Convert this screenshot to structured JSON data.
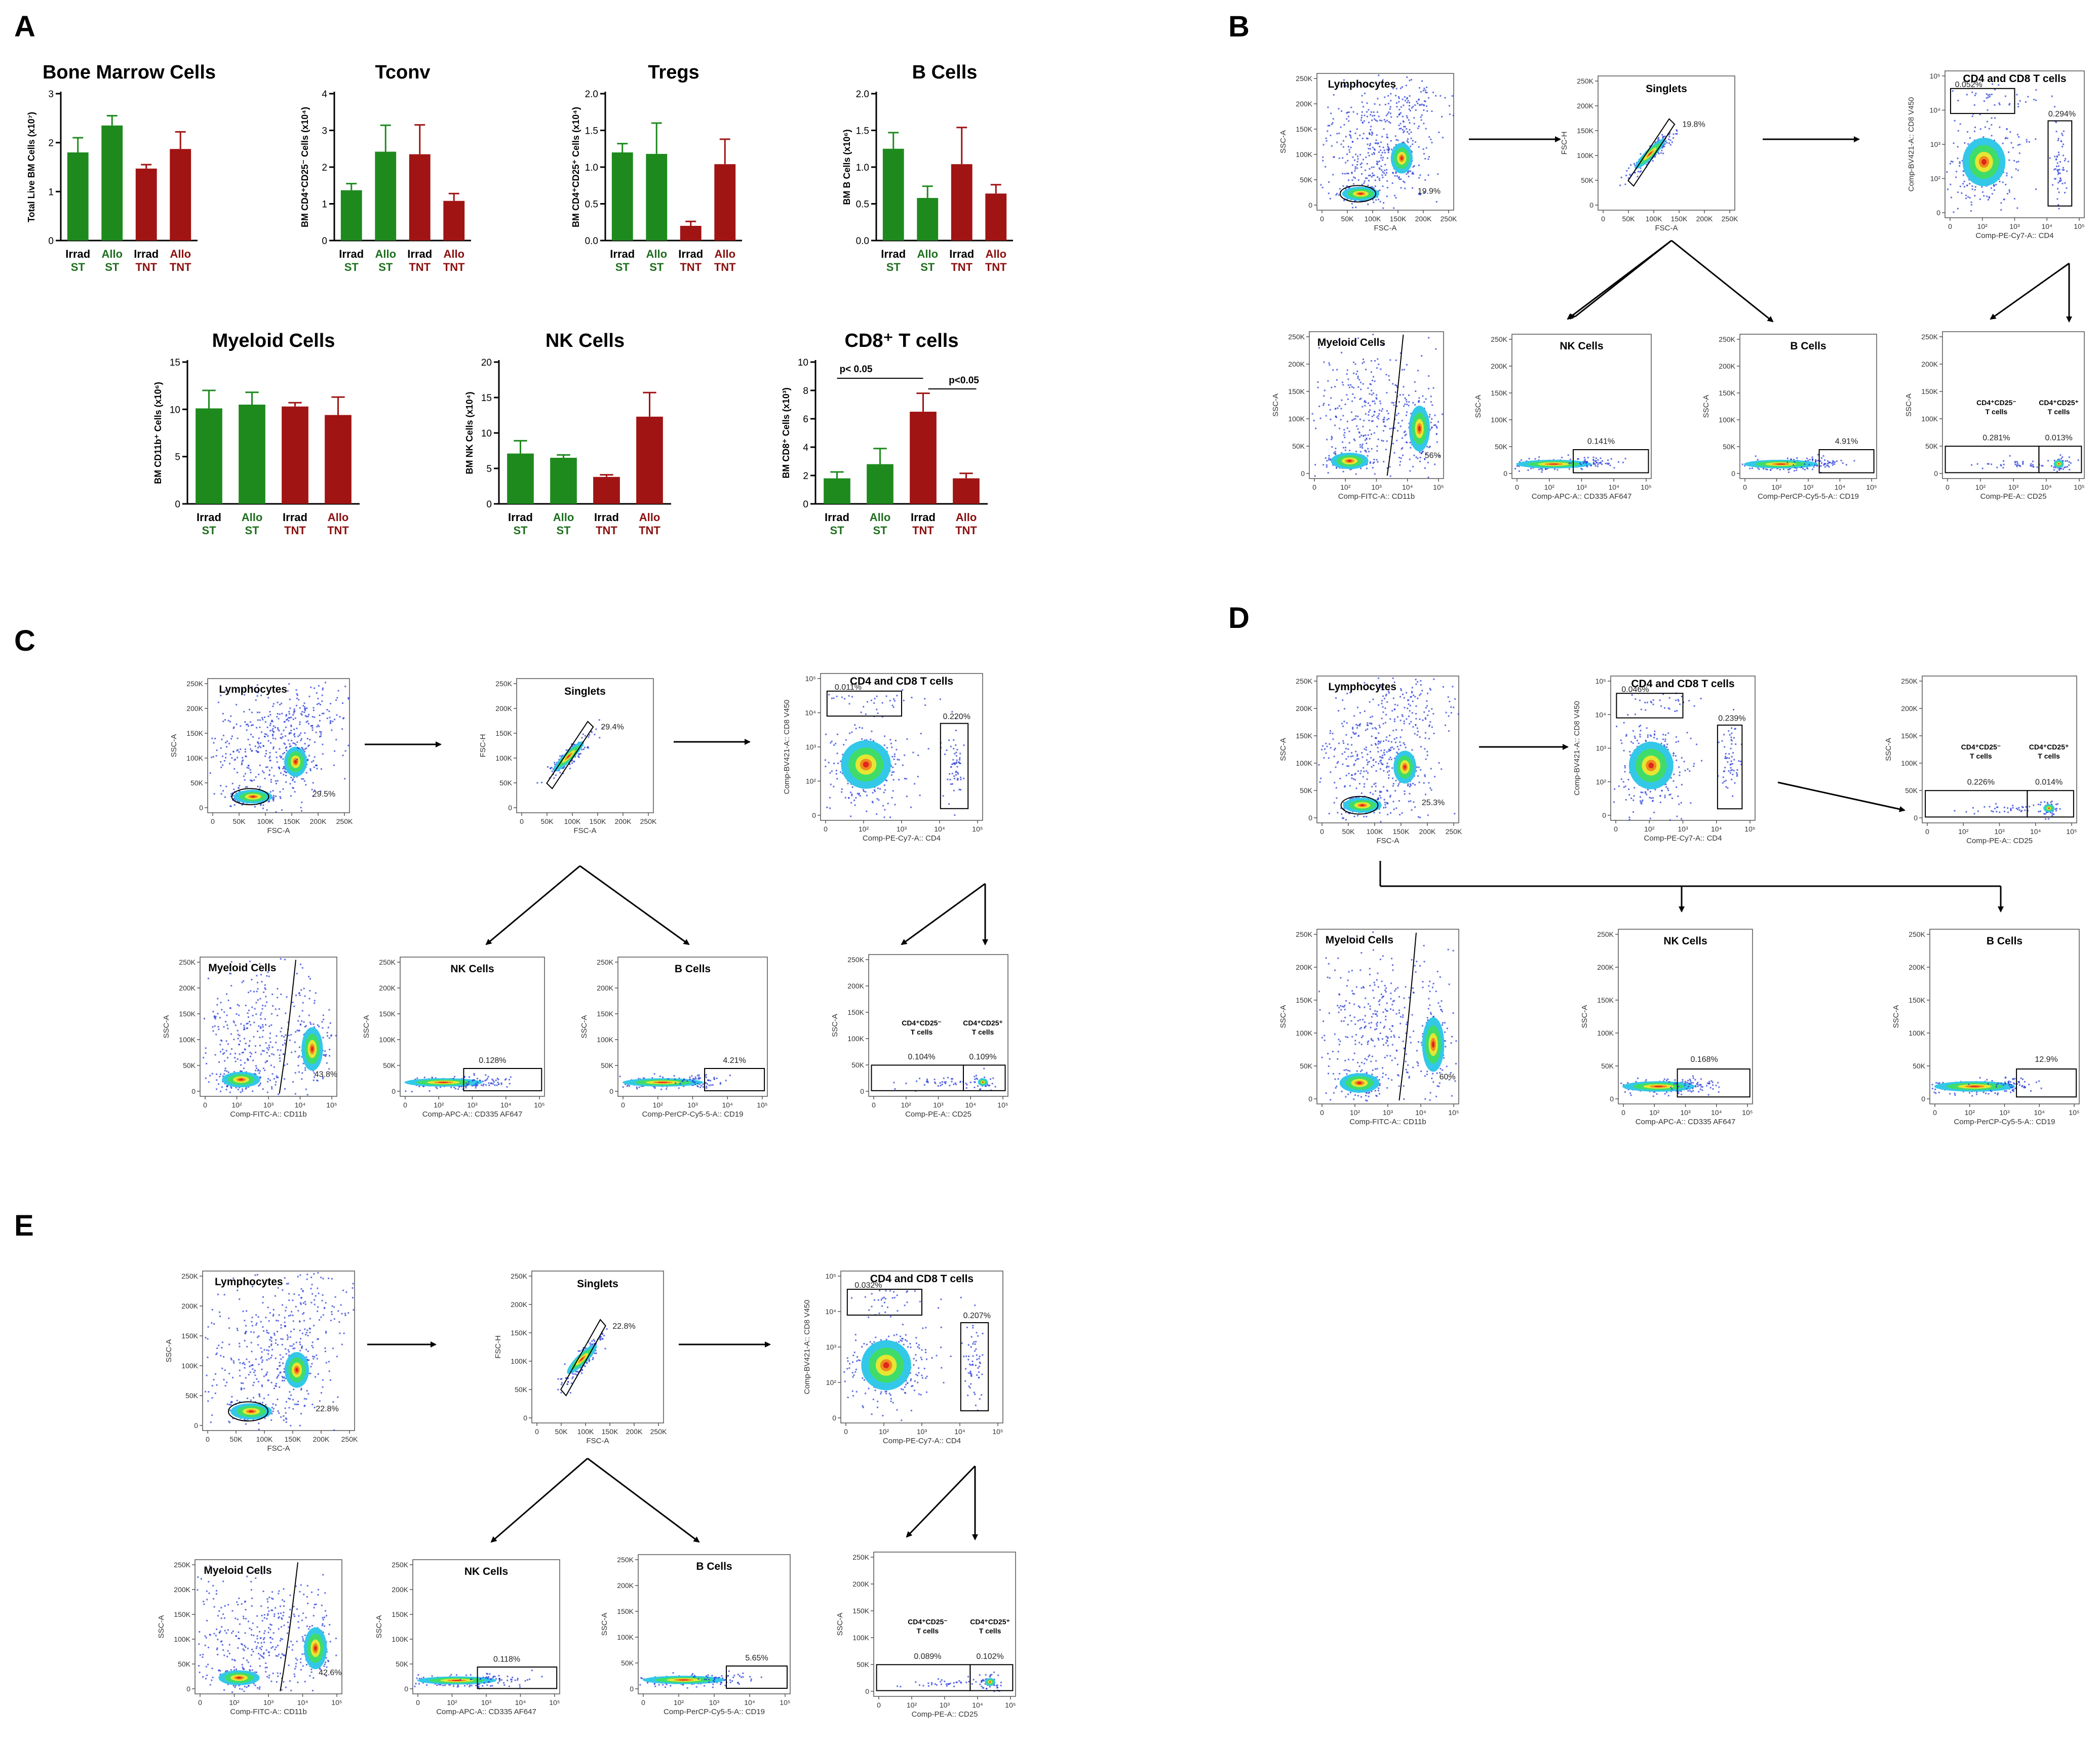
{
  "panel_labels": [
    "A",
    "B",
    "C",
    "D",
    "E"
  ],
  "colors": {
    "st": "#1e8a1e",
    "tnt": "#a01414",
    "st_text": "#1e6e1e",
    "tnt_text": "#8b0f0f",
    "axis": "#000000"
  },
  "significance": {
    "p1": "p< 0.05",
    "p2": "p<0.05"
  },
  "chart_data": [
    {
      "type": "bar",
      "title": "Bone Marrow Cells",
      "ylabel": "Total Live BM Cells (x10⁷)",
      "ylim": [
        0,
        3
      ],
      "yticks": [
        "0",
        "1",
        "2",
        "3"
      ],
      "categories": [
        "Irrad ST",
        "Allo ST",
        "Irrad TNT",
        "Allo TNT"
      ],
      "values": [
        1.8,
        2.35,
        1.47,
        1.87
      ],
      "errors": [
        0.3,
        0.2,
        0.08,
        0.35
      ]
    },
    {
      "type": "bar",
      "title": "Tconv",
      "ylabel": "BM CD4⁺CD25⁻ Cells (x10⁴)",
      "ylim": [
        0,
        4
      ],
      "yticks": [
        "0",
        "1",
        "2",
        "3",
        "4"
      ],
      "categories": [
        "Irrad ST",
        "Allo ST",
        "Irrad TNT",
        "Allo TNT"
      ],
      "values": [
        1.37,
        2.42,
        2.35,
        1.08
      ],
      "errors": [
        0.18,
        0.72,
        0.8,
        0.2
      ]
    },
    {
      "type": "bar",
      "title": "Tregs",
      "ylabel": "BM CD4⁺CD25⁺ Cells (x10⁴)",
      "ylim": [
        0,
        2
      ],
      "yticks": [
        "0.0",
        "0.5",
        "1.0",
        "1.5",
        "2.0"
      ],
      "categories": [
        "Irrad ST",
        "Allo ST",
        "Irrad TNT",
        "Allo TNT"
      ],
      "values": [
        1.2,
        1.18,
        0.2,
        1.04
      ],
      "errors": [
        0.12,
        0.42,
        0.06,
        0.34
      ]
    },
    {
      "type": "bar",
      "title": "B Cells",
      "ylabel": "BM B Cells (x10⁶)",
      "ylim": [
        0,
        2
      ],
      "yticks": [
        "0.0",
        "0.5",
        "1.0",
        "1.5",
        "2.0"
      ],
      "categories": [
        "Irrad ST",
        "Allo ST",
        "Irrad TNT",
        "Allo TNT"
      ],
      "values": [
        1.25,
        0.58,
        1.04,
        0.64
      ],
      "errors": [
        0.22,
        0.16,
        0.5,
        0.12
      ]
    },
    {
      "type": "bar",
      "title": "Myeloid Cells",
      "ylabel": "BM CD11b⁺ Cells (x10⁶)",
      "ylim": [
        0,
        15
      ],
      "yticks": [
        "0",
        "5",
        "10",
        "15"
      ],
      "categories": [
        "Irrad ST",
        "Allo ST",
        "Irrad TNT",
        "Allo TNT"
      ],
      "values": [
        10.1,
        10.5,
        10.3,
        9.4
      ],
      "errors": [
        1.9,
        1.3,
        0.4,
        1.9
      ]
    },
    {
      "type": "bar",
      "title": "NK Cells",
      "ylabel": "BM NK Cells (x10⁴)",
      "ylim": [
        0,
        20
      ],
      "yticks": [
        "0",
        "5",
        "10",
        "15",
        "20"
      ],
      "categories": [
        "Irrad ST",
        "Allo ST",
        "Irrad TNT",
        "Allo TNT"
      ],
      "values": [
        7.1,
        6.5,
        3.8,
        12.3
      ],
      "errors": [
        1.8,
        0.4,
        0.3,
        3.4
      ]
    },
    {
      "type": "bar",
      "title": "CD8⁺ T cells",
      "ylabel": "BM CD8⁺ Cells (x10³)",
      "ylim": [
        0,
        10
      ],
      "yticks": [
        "0",
        "2",
        "4",
        "6",
        "8",
        "10"
      ],
      "categories": [
        "Irrad ST",
        "Allo ST",
        "Irrad TNT",
        "Allo TNT"
      ],
      "values": [
        1.8,
        2.8,
        6.5,
        1.8
      ],
      "errors": [
        0.45,
        1.1,
        1.3,
        0.35
      ]
    }
  ],
  "flow_panels": {
    "B": {
      "lymph": {
        "title": "Lymphocytes",
        "pct": "19.9%",
        "x": "FSC-A",
        "y": "SSC-A"
      },
      "singlets": {
        "title": "Singlets",
        "pct": "19.8%",
        "x": "FSC-A",
        "y": "FSC-H"
      },
      "cd4cd8": {
        "title": "CD4 and CD8 T cells",
        "pct_cd8": "0.052%",
        "pct_cd4": "0.294%",
        "x": "Comp-PE-Cy7-A:: CD4",
        "y": "Comp-BV421-A:: CD8 V450"
      },
      "myeloid": {
        "title": "Myeloid Cells",
        "pct": "56%",
        "x": "Comp-FITC-A:: CD11b",
        "y": "SSC-A"
      },
      "nk": {
        "title": "NK Cells",
        "pct": "0.141%",
        "x": "Comp-APC-A:: CD335 AF647",
        "y": "SSC-A"
      },
      "bcells": {
        "title": "B Cells",
        "pct": "4.91%",
        "x": "Comp-PerCP-Cy5-5-A:: CD19",
        "y": "SSC-A"
      },
      "cd25": {
        "neg": "CD4⁺CD25⁻ T cells",
        "pos": "CD4⁺CD25⁺ T cells",
        "pct_neg": "0.281%",
        "pct_pos": "0.013%",
        "x": "Comp-PE-A:: CD25",
        "y": "SSC-A"
      }
    },
    "C": {
      "lymph": {
        "title": "Lymphocytes",
        "pct": "29.5%",
        "x": "FSC-A",
        "y": "SSC-A"
      },
      "singlets": {
        "title": "Singlets",
        "pct": "29.4%",
        "x": "FSC-A",
        "y": "FSC-H"
      },
      "cd4cd8": {
        "title": "CD4 and CD8 T cells",
        "pct_cd8": "0.011%",
        "pct_cd4": "0.220%",
        "x": "Comp-PE-Cy7-A:: CD4",
        "y": "Comp-BV421-A:: CD8 V450"
      },
      "myeloid": {
        "title": "Myeloid Cells",
        "pct": "43.8%",
        "x": "Comp-FITC-A:: CD11b",
        "y": "SSC-A"
      },
      "nk": {
        "title": "NK Cells",
        "pct": "0.128%",
        "x": "Comp-APC-A:: CD335 AF647",
        "y": "SSC-A"
      },
      "bcells": {
        "title": "B Cells",
        "pct": "4.21%",
        "x": "Comp-PerCP-Cy5-5-A:: CD19",
        "y": "SSC-A"
      },
      "cd25": {
        "neg": "CD4⁺CD25⁻ T cells",
        "pos": "CD4⁺CD25⁺ T cells",
        "pct_neg": "0.104%",
        "pct_pos": "0.109%",
        "x": "Comp-PE-A:: CD25",
        "y": "SSC-A"
      }
    },
    "D": {
      "lymph": {
        "title": "Lymphocytes",
        "pct": "25.3%",
        "x": "FSC-A",
        "y": "SSC-A"
      },
      "cd4cd8": {
        "title": "CD4 and CD8 T cells",
        "pct_cd8": "0.046%",
        "pct_cd4": "0.239%",
        "x": "Comp-PE-Cy7-A:: CD4",
        "y": "Comp-BV421-A:: CD8 V450"
      },
      "cd25": {
        "neg": "CD4⁺CD25⁻ T cells",
        "pos": "CD4⁺CD25⁺ T cells",
        "pct_neg": "0.226%",
        "pct_pos": "0.014%",
        "x": "Comp-PE-A:: CD25",
        "y": "SSC-A"
      },
      "myeloid": {
        "title": "Myeloid Cells",
        "pct": "60%",
        "x": "Comp-FITC-A:: CD11b",
        "y": "SSC-A"
      },
      "nk": {
        "title": "NK Cells",
        "pct": "0.168%",
        "x": "Comp-APC-A:: CD335 AF647",
        "y": "SSC-A"
      },
      "bcells": {
        "title": "B Cells",
        "pct": "12.9%",
        "x": "Comp-PerCP-Cy5-5-A:: CD19",
        "y": "SSC-A"
      }
    },
    "E": {
      "lymph": {
        "title": "Lymphocytes",
        "pct": "22.8%",
        "x": "FSC-A",
        "y": "SSC-A"
      },
      "singlets": {
        "title": "Singlets",
        "pct": "22.8%",
        "x": "FSC-A",
        "y": "FSC-H"
      },
      "cd4cd8": {
        "title": "CD4 and CD8 T cells",
        "pct_cd8": "0.032%",
        "pct_cd4": "0.207%",
        "x": "Comp-PE-Cy7-A:: CD4",
        "y": "Comp-BV421-A:: CD8 V450"
      },
      "myeloid": {
        "title": "Myeloid Cells",
        "pct": "42.6%",
        "x": "Comp-FITC-A:: CD11b",
        "y": "SSC-A"
      },
      "nk": {
        "title": "NK Cells",
        "pct": "0.118%",
        "x": "Comp-APC-A:: CD335 AF647",
        "y": "SSC-A"
      },
      "bcells": {
        "title": "B Cells",
        "pct": "5.65%",
        "x": "Comp-PerCP-Cy5-5-A:: CD19",
        "y": "SSC-A"
      },
      "cd25": {
        "neg": "CD4⁺CD25⁻ T cells",
        "pos": "CD4⁺CD25⁺ T cells",
        "pct_neg": "0.089%",
        "pct_pos": "0.102%",
        "x": "Comp-PE-A:: CD25",
        "y": "SSC-A"
      }
    }
  },
  "axis_ticks": {
    "linear_k": [
      "0",
      "50K",
      "100K",
      "150K",
      "200K",
      "250K"
    ],
    "log_labels": [
      "0",
      "10²",
      "10³",
      "10⁴",
      "10⁵"
    ],
    "singlets_x": [
      "0",
      "50K",
      "100K",
      "150K",
      "200K",
      "250K"
    ],
    "singlets_y": [
      "0",
      "50K",
      "100K",
      "150K",
      "200K",
      "250K"
    ],
    "cd8_y": [
      "0",
      "10²",
      "10³",
      "10⁴",
      "10⁵"
    ]
  }
}
